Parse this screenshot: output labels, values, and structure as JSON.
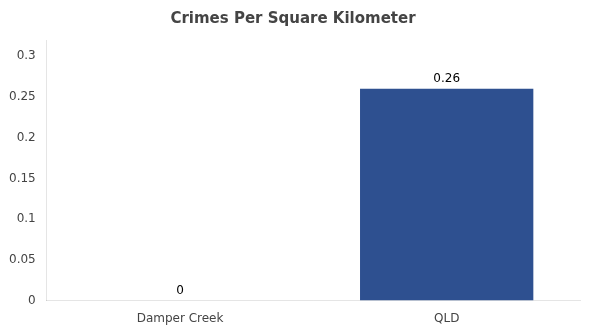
{
  "chart_data": {
    "type": "bar",
    "title": "Crimes Per Square Kilometer",
    "categories": [
      "Damper Creek",
      "QLD"
    ],
    "values": [
      0,
      0.26
    ],
    "color": "#2e5090",
    "ylim": [
      0,
      0.32
    ],
    "yticks": [
      0,
      0.05,
      0.1,
      0.15,
      0.2,
      0.25,
      0.3
    ],
    "grid": false,
    "data_labels": true
  }
}
